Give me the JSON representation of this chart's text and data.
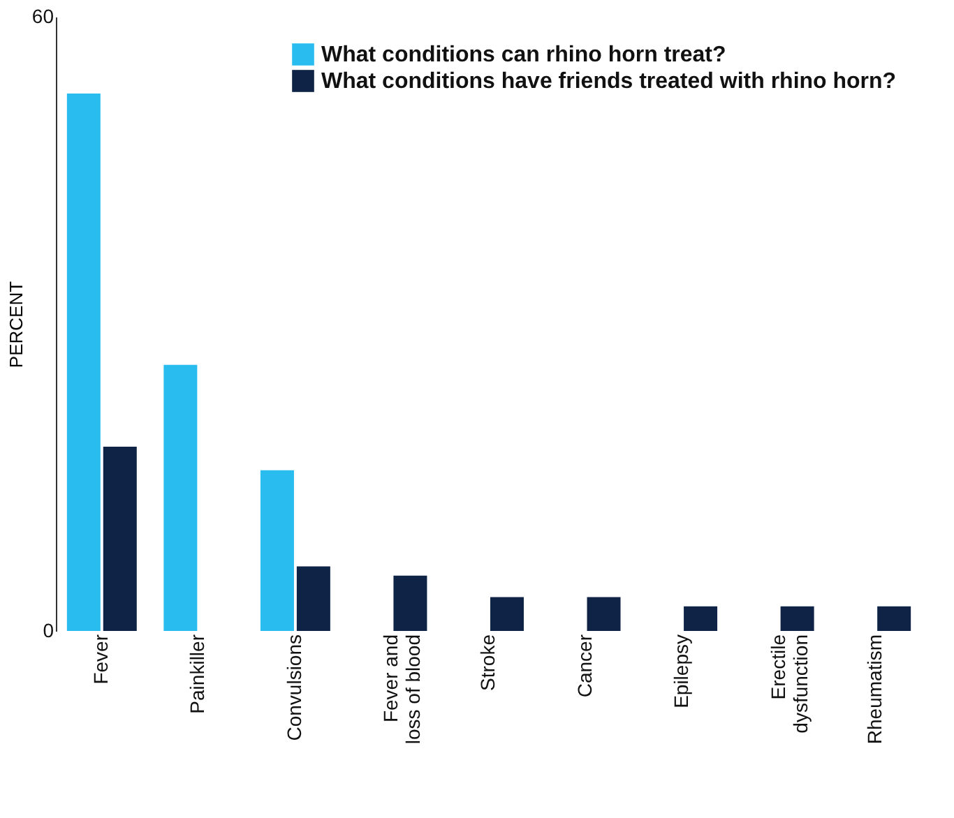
{
  "chart_data": {
    "type": "bar",
    "ylabel": "PERCENT",
    "categories": [
      "Fever",
      "Painkiller",
      "Convulsions",
      "Fever and\nloss of blood",
      "Stroke",
      "Cancer",
      "Epilepsy",
      "Erectile\ndysfunction",
      "Rheumatism"
    ],
    "series": [
      {
        "name": "What conditions can rhino horn treat?",
        "color": "#29bdef",
        "values": [
          52.5,
          26,
          15.7,
          null,
          null,
          null,
          null,
          null,
          null
        ]
      },
      {
        "name": "What conditions have friends treated with rhino horn?",
        "color": "#0f2346",
        "values": [
          18,
          null,
          6.3,
          5.4,
          3.3,
          3.3,
          2.4,
          2.4,
          2.4
        ]
      }
    ],
    "ylim": [
      0,
      60
    ],
    "yticks": [
      0,
      60
    ],
    "grid": false,
    "legend": "top right"
  }
}
